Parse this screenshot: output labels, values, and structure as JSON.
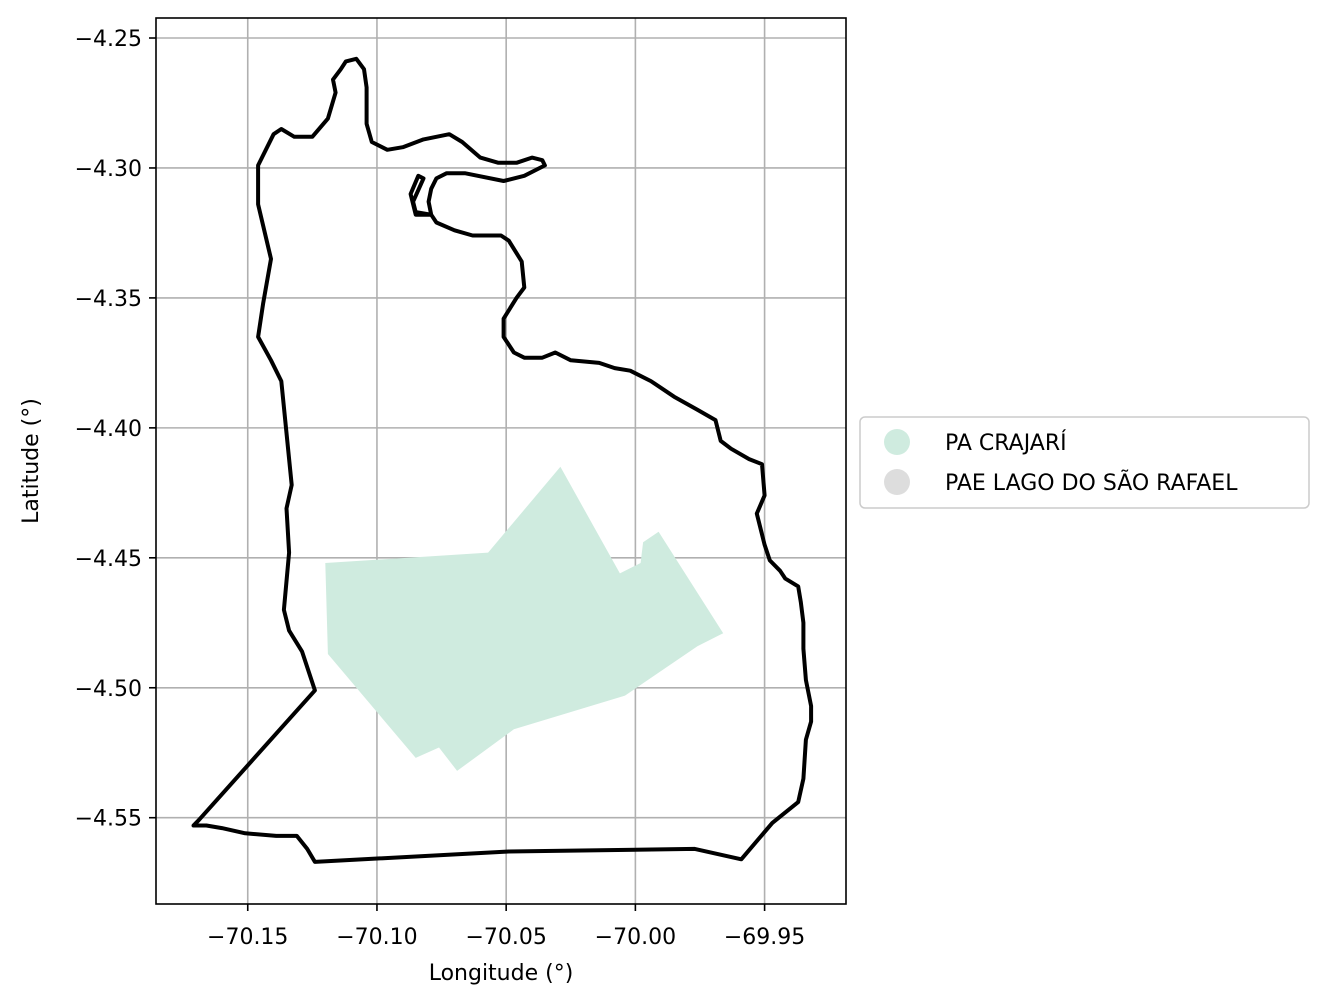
{
  "chart_data": {
    "type": "map",
    "xlabel": "Longitude (°)",
    "ylabel": "Latitude (°)",
    "xlim": [
      -70.1855,
      -69.9185
    ],
    "ylim": [
      -4.5832,
      -4.2423
    ],
    "grid": true,
    "x_ticks": [
      -70.15,
      -70.1,
      -70.05,
      -70.0,
      -69.95
    ],
    "x_tick_labels": [
      "−70.15",
      "−70.10",
      "−70.05",
      "−70.00",
      "−69.95"
    ],
    "y_ticks": [
      -4.25,
      -4.3,
      -4.35,
      -4.4,
      -4.45,
      -4.5,
      -4.55
    ],
    "y_tick_labels": [
      "−4.25",
      "−4.30",
      "−4.35",
      "−4.40",
      "−4.45",
      "−4.50",
      "−4.55"
    ],
    "legend": {
      "placement": "center-right outside",
      "entries": [
        {
          "label": "PA CRAJARÍ",
          "color": "#cfebdf"
        },
        {
          "label": "PAE LAGO DO SÃO RAFAEL",
          "color": "#dddddd"
        }
      ]
    },
    "regions": [
      {
        "name": "PA CRAJARÍ",
        "fill": "#cfebdf",
        "coordinates": [
          [
            -70.12,
            -4.452
          ],
          [
            -70.057,
            -4.448
          ],
          [
            -70.029,
            -4.415
          ],
          [
            -70.006,
            -4.456
          ],
          [
            -69.998,
            -4.452
          ],
          [
            -69.997,
            -4.444
          ],
          [
            -69.991,
            -4.44
          ],
          [
            -69.966,
            -4.479
          ],
          [
            -69.976,
            -4.484
          ],
          [
            -70.004,
            -4.503
          ],
          [
            -70.047,
            -4.516
          ],
          [
            -70.069,
            -4.532
          ],
          [
            -70.076,
            -4.523
          ],
          [
            -70.085,
            -4.527
          ],
          [
            -70.119,
            -4.487
          ]
        ]
      }
    ],
    "boundary": {
      "stroke": "#000000",
      "coordinates": [
        [
          -70.112,
          -4.259
        ],
        [
          -70.108,
          -4.258
        ],
        [
          -70.105,
          -4.262
        ],
        [
          -70.104,
          -4.269
        ],
        [
          -70.104,
          -4.283
        ],
        [
          -70.102,
          -4.29
        ],
        [
          -70.096,
          -4.293
        ],
        [
          -70.09,
          -4.292
        ],
        [
          -70.082,
          -4.289
        ],
        [
          -70.072,
          -4.287
        ],
        [
          -70.067,
          -4.29
        ],
        [
          -70.06,
          -4.296
        ],
        [
          -70.053,
          -4.298
        ],
        [
          -70.046,
          -4.298
        ],
        [
          -70.04,
          -4.296
        ],
        [
          -70.036,
          -4.297
        ],
        [
          -70.035,
          -4.299
        ],
        [
          -70.043,
          -4.303
        ],
        [
          -70.051,
          -4.305
        ],
        [
          -70.066,
          -4.302
        ],
        [
          -70.073,
          -4.302
        ],
        [
          -70.077,
          -4.304
        ],
        [
          -70.079,
          -4.308
        ],
        [
          -70.08,
          -4.313
        ],
        [
          -70.079,
          -4.318
        ],
        [
          -70.077,
          -4.321
        ],
        [
          -70.07,
          -4.324
        ],
        [
          -70.063,
          -4.326
        ],
        [
          -70.052,
          -4.326
        ],
        [
          -70.049,
          -4.328
        ],
        [
          -70.044,
          -4.336
        ],
        [
          -70.043,
          -4.346
        ],
        [
          -70.046,
          -4.35
        ],
        [
          -70.051,
          -4.358
        ],
        [
          -70.051,
          -4.365
        ],
        [
          -70.047,
          -4.371
        ],
        [
          -70.043,
          -4.373
        ],
        [
          -70.036,
          -4.373
        ],
        [
          -70.031,
          -4.371
        ],
        [
          -70.025,
          -4.374
        ],
        [
          -70.014,
          -4.375
        ],
        [
          -70.008,
          -4.377
        ],
        [
          -70.002,
          -4.378
        ],
        [
          -69.994,
          -4.382
        ],
        [
          -69.985,
          -4.388
        ],
        [
          -69.976,
          -4.393
        ],
        [
          -69.969,
          -4.397
        ],
        [
          -69.967,
          -4.405
        ],
        [
          -69.963,
          -4.408
        ],
        [
          -69.956,
          -4.412
        ],
        [
          -69.951,
          -4.414
        ],
        [
          -69.95,
          -4.426
        ],
        [
          -69.953,
          -4.433
        ],
        [
          -69.95,
          -4.445
        ],
        [
          -69.948,
          -4.451
        ],
        [
          -69.944,
          -4.455
        ],
        [
          -69.942,
          -4.458
        ],
        [
          -69.937,
          -4.461
        ],
        [
          -69.936,
          -4.467
        ],
        [
          -69.935,
          -4.475
        ],
        [
          -69.935,
          -4.485
        ],
        [
          -69.934,
          -4.497
        ],
        [
          -69.932,
          -4.507
        ],
        [
          -69.932,
          -4.513
        ],
        [
          -69.934,
          -4.52
        ],
        [
          -69.935,
          -4.535
        ],
        [
          -69.937,
          -4.544
        ],
        [
          -69.947,
          -4.552
        ],
        [
          -69.959,
          -4.566
        ],
        [
          -69.977,
          -4.562
        ],
        [
          -70.049,
          -4.563
        ],
        [
          -70.124,
          -4.567
        ],
        [
          -70.127,
          -4.562
        ],
        [
          -70.131,
          -4.557
        ],
        [
          -70.139,
          -4.557
        ],
        [
          -70.151,
          -4.556
        ],
        [
          -70.16,
          -4.554
        ],
        [
          -70.166,
          -4.553
        ],
        [
          -70.171,
          -4.553
        ],
        [
          -70.169,
          -4.551
        ],
        [
          -70.124,
          -4.501
        ],
        [
          -70.129,
          -4.486
        ],
        [
          -70.134,
          -4.478
        ],
        [
          -70.136,
          -4.47
        ],
        [
          -70.134,
          -4.448
        ],
        [
          -70.135,
          -4.431
        ],
        [
          -70.133,
          -4.422
        ],
        [
          -70.137,
          -4.382
        ],
        [
          -70.141,
          -4.374
        ],
        [
          -70.146,
          -4.365
        ],
        [
          -70.144,
          -4.352
        ],
        [
          -70.141,
          -4.335
        ],
        [
          -70.146,
          -4.314
        ],
        [
          -70.146,
          -4.299
        ],
        [
          -70.14,
          -4.287
        ],
        [
          -70.137,
          -4.285
        ],
        [
          -70.132,
          -4.288
        ],
        [
          -70.125,
          -4.288
        ],
        [
          -70.119,
          -4.281
        ],
        [
          -70.116,
          -4.271
        ],
        [
          -70.117,
          -4.266
        ],
        [
          -70.114,
          -4.262
        ],
        [
          -70.112,
          -4.259
        ]
      ],
      "inner_loop": [
        [
          -70.079,
          -4.318
        ],
        [
          -70.085,
          -4.318
        ],
        [
          -70.087,
          -4.31
        ],
        [
          -70.084,
          -4.303
        ],
        [
          -70.082,
          -4.304
        ],
        [
          -70.086,
          -4.313
        ],
        [
          -70.085,
          -4.317
        ],
        [
          -70.079,
          -4.318
        ]
      ]
    }
  }
}
